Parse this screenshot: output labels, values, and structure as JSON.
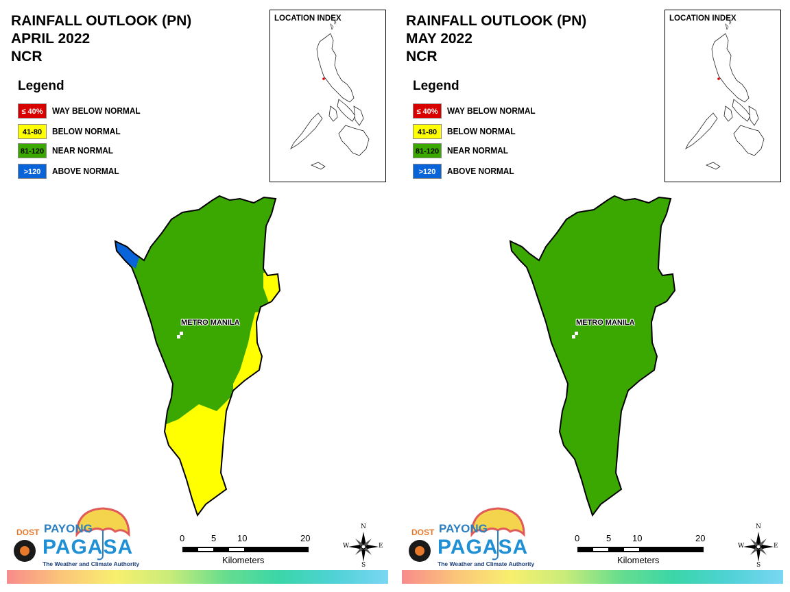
{
  "panels": [
    {
      "title_line1": "RAINFALL OUTLOOK (PN)",
      "title_line2": "APRIL 2022",
      "title_line3": "NCR",
      "place_label": "METRO MANILA"
    },
    {
      "title_line1": "RAINFALL OUTLOOK (PN)",
      "title_line2": "MAY 2022",
      "title_line3": "NCR",
      "place_label": "METRO MANILA"
    }
  ],
  "legend": {
    "heading": "Legend",
    "items": [
      {
        "range": "≤ 40%",
        "label": "WAY BELOW NORMAL",
        "color": "#d90000",
        "text_color": "#ffffff"
      },
      {
        "range": "41-80",
        "label": "BELOW NORMAL",
        "color": "#ffff00",
        "text_color": "#000000"
      },
      {
        "range": "81-120",
        "label": "NEAR NORMAL",
        "color": "#3aa800",
        "text_color": "#000000"
      },
      {
        "range": ">120",
        "label": "ABOVE NORMAL",
        "color": "#0a64d9",
        "text_color": "#ffffff"
      }
    ]
  },
  "location_index": {
    "title": "LOCATION INDEX"
  },
  "logo": {
    "dost": "DOST",
    "payong": "PAYONG",
    "pagasa": "PAGASA",
    "tagline": "The Weather and Climate Authority"
  },
  "scale_bar": {
    "ticks": [
      "0",
      "5",
      "10",
      "20"
    ],
    "unit": "Kilometers"
  },
  "compass": {
    "n": "N",
    "s": "S",
    "e": "E",
    "w": "W"
  },
  "colors": {
    "near_normal": "#3aa800",
    "below_normal": "#ffff00",
    "above_normal": "#0a64d9"
  }
}
